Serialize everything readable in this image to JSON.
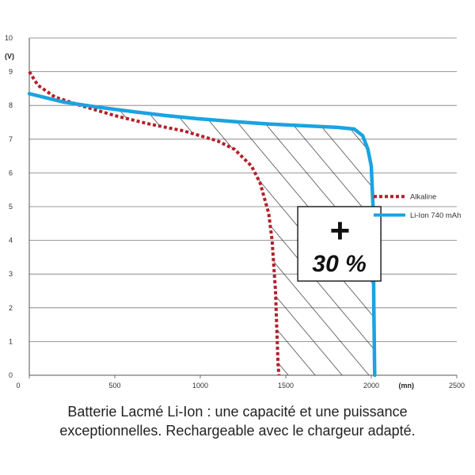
{
  "chart_data": {
    "type": "line",
    "title": "",
    "xlabel": "",
    "ylabel": "",
    "x_unit": "(mn)",
    "y_unit": "(V)",
    "xlim": [
      0,
      2500
    ],
    "ylim": [
      0,
      10
    ],
    "x_ticks": [
      0,
      500,
      1000,
      1500,
      2000,
      2500
    ],
    "y_ticks": [
      0,
      1,
      2,
      3,
      4,
      5,
      6,
      7,
      8,
      9,
      10
    ],
    "grid": "horizontal",
    "legend_position": "right",
    "series": [
      {
        "name": "Alkaline",
        "color": "#b3202a",
        "style": "dotted",
        "x": [
          0,
          50,
          150,
          300,
          500,
          700,
          900,
          1100,
          1200,
          1300,
          1350,
          1400,
          1420,
          1440,
          1450,
          1455,
          1460
        ],
        "y": [
          9.0,
          8.6,
          8.25,
          8.0,
          7.7,
          7.45,
          7.25,
          6.95,
          6.7,
          6.2,
          5.7,
          4.8,
          4.0,
          2.5,
          1.0,
          0.3,
          0
        ]
      },
      {
        "name": "Li-Ion 740 mAh",
        "color": "#1aa3e0",
        "style": "solid",
        "x": [
          0,
          200,
          400,
          600,
          800,
          1000,
          1200,
          1400,
          1600,
          1800,
          1900,
          1950,
          1980,
          2000,
          2010,
          2015,
          2020
        ],
        "y": [
          8.35,
          8.1,
          7.95,
          7.82,
          7.7,
          7.6,
          7.52,
          7.45,
          7.4,
          7.35,
          7.3,
          7.1,
          6.7,
          6.2,
          5.0,
          2.0,
          0
        ]
      }
    ],
    "annotation": {
      "line1": "+",
      "line2": "30 %"
    }
  },
  "caption": {
    "line1": "Batterie Lacmé Li-Ion : une capacité et une puissance",
    "line2": "exceptionnelles. Rechargeable avec le chargeur adapté."
  }
}
